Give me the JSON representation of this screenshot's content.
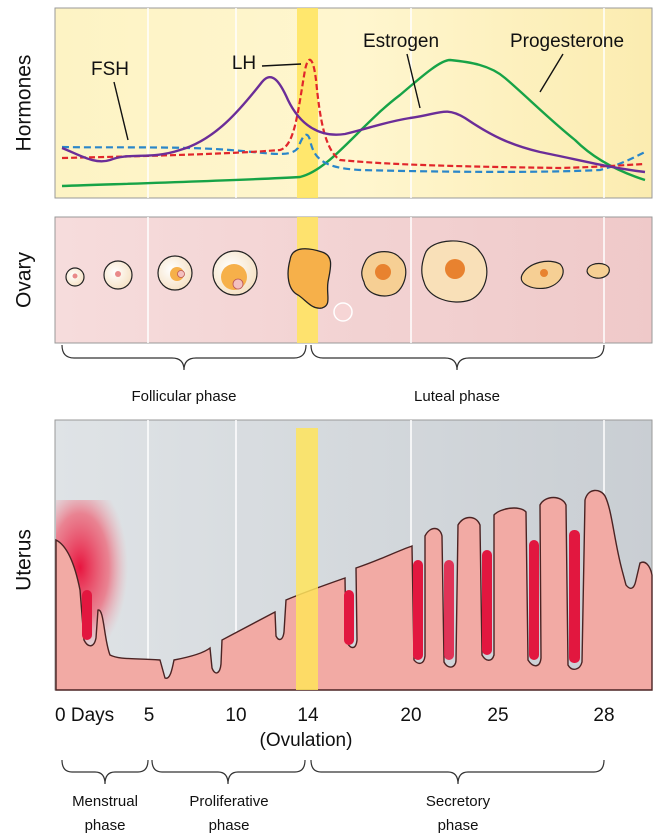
{
  "panels": {
    "hormones": {
      "label": "Hormones",
      "curves": {
        "fsh": "FSH",
        "lh": "LH",
        "estrogen": "Estrogen",
        "progesterone": "Progesterone"
      }
    },
    "ovary": {
      "label": "Ovary",
      "phases": [
        "Follicular phase",
        "Luteal phase"
      ]
    },
    "uterus": {
      "label": "Uterus"
    }
  },
  "day_axis": {
    "labels": [
      "0 Days",
      "5",
      "10",
      "14",
      "20",
      "25",
      "28"
    ],
    "note": "(Ovulation)"
  },
  "uterine_phases": [
    [
      "Menstrual",
      "phase"
    ],
    [
      "Proliferative",
      "phase"
    ],
    [
      "Secretory",
      "phase"
    ]
  ]
}
